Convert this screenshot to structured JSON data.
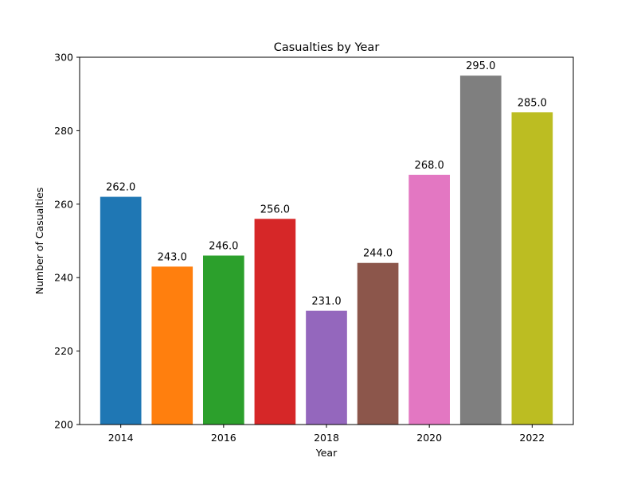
{
  "chart_data": {
    "type": "bar",
    "title": "Casualties by Year",
    "xlabel": "Year",
    "ylabel": "Number of Casualties",
    "x": [
      2014,
      2015,
      2016,
      2017,
      2018,
      2019,
      2020,
      2021,
      2022
    ],
    "values": [
      262,
      243,
      246,
      256,
      231,
      244,
      268,
      295,
      285
    ],
    "data_labels": [
      "262.0",
      "243.0",
      "246.0",
      "256.0",
      "231.0",
      "244.0",
      "268.0",
      "295.0",
      "285.0"
    ],
    "colors": [
      "#1f77b4",
      "#ff7f0e",
      "#2ca02c",
      "#d62728",
      "#9467bd",
      "#8c564b",
      "#e377c2",
      "#7f7f7f",
      "#bcbd22"
    ],
    "ylim": [
      200,
      300
    ],
    "xlim": [
      2013.2,
      2022.8
    ],
    "yticks": [
      200,
      220,
      240,
      260,
      280,
      300
    ],
    "yticklabels": [
      "200",
      "220",
      "240",
      "260",
      "280",
      "300"
    ],
    "xticks": [
      2014,
      2016,
      2018,
      2020,
      2022
    ],
    "xticklabels": [
      "2014",
      "2016",
      "2018",
      "2020",
      "2022"
    ],
    "grid": false,
    "legend": false
  }
}
